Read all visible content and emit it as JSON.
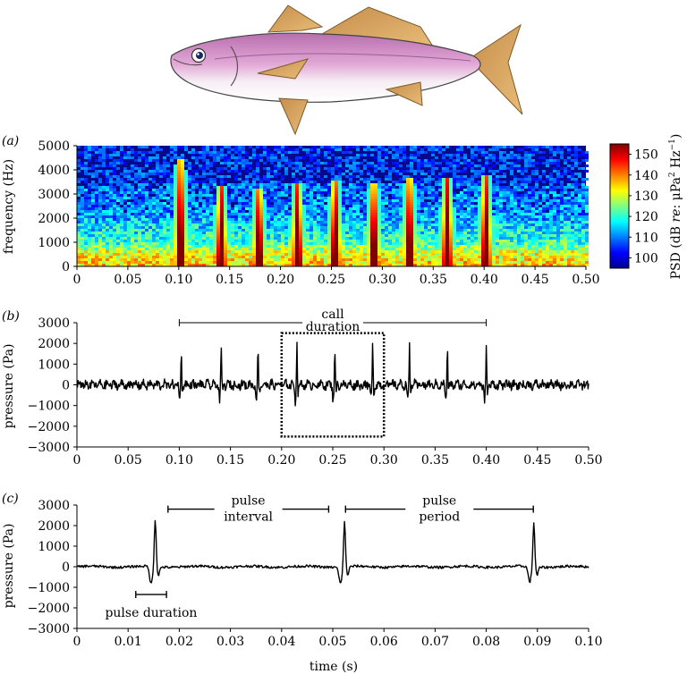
{
  "colors": {
    "spectrogram_background": "#050a8c",
    "trace": "#000000",
    "fish_body_top": "#c77bb8",
    "fish_body_belly": "#f6eef4",
    "fish_fins": "#d9a35b"
  },
  "icons": {
    "fish": "fish-illustration"
  },
  "chart_data": [
    {
      "panel_label": "(a)",
      "type": "heatmap",
      "ylabel": "frequency (Hz)",
      "xlabel": "",
      "xlim": [
        0,
        0.5
      ],
      "ylim": [
        0,
        5000
      ],
      "xticks": [
        "0",
        "0.05",
        "0.10",
        "0.15",
        "0.20",
        "0.25",
        "0.30",
        "0.35",
        "0.40",
        "0.45",
        "0.50"
      ],
      "yticks": [
        "0",
        "1000",
        "2000",
        "3000",
        "4000",
        "5000"
      ],
      "colorbar": {
        "label_parts": [
          "PSD (dB ",
          "re",
          ": μPa",
          "2",
          " Hz",
          "−1",
          ")"
        ],
        "range": [
          95,
          155
        ],
        "ticks": [
          "100",
          "110",
          "120",
          "130",
          "140",
          "150"
        ]
      },
      "pulse_times": [
        0.1,
        0.14,
        0.177,
        0.215,
        0.252,
        0.29,
        0.325,
        0.362,
        0.4
      ],
      "pulse_peak_freq_top": [
        4500,
        3400,
        3300,
        3500,
        3600,
        3500,
        3700,
        3700,
        3800
      ]
    },
    {
      "panel_label": "(b)",
      "type": "line",
      "ylabel": "pressure (Pa)",
      "xlabel": "",
      "xlim": [
        0,
        0.5
      ],
      "ylim": [
        -3000,
        3000
      ],
      "xticks": [
        "0",
        "0.05",
        "0.10",
        "0.15",
        "0.20",
        "0.25",
        "0.30",
        "0.35",
        "0.40",
        "0.45",
        "0.50"
      ],
      "yticks": [
        "3000",
        "2000",
        "1000",
        "0",
        "−1000",
        "−2000",
        "−3000"
      ],
      "pulses": [
        {
          "t": 0.102,
          "peak": 2000,
          "trough": -800
        },
        {
          "t": 0.141,
          "peak": 1800,
          "trough": -700
        },
        {
          "t": 0.177,
          "peak": 1900,
          "trough": -700
        },
        {
          "t": 0.215,
          "peak": 2200,
          "trough": -800
        },
        {
          "t": 0.252,
          "peak": 1900,
          "trough": -700
        },
        {
          "t": 0.289,
          "peak": 2200,
          "trough": -700
        },
        {
          "t": 0.325,
          "peak": 1900,
          "trough": -700
        },
        {
          "t": 0.362,
          "peak": 1900,
          "trough": -700
        },
        {
          "t": 0.4,
          "peak": 2000,
          "trough": -900
        }
      ],
      "annotation": {
        "line1": "call",
        "line2": "duration",
        "from": 0.1,
        "to": 0.4,
        "y": 3000
      },
      "zoom_box": {
        "x0": 0.2,
        "x1": 0.3,
        "y0": -2500,
        "y1": 2500
      }
    },
    {
      "panel_label": "(c)",
      "type": "line",
      "ylabel": "pressure (Pa)",
      "xlabel": "time (s)",
      "xlim": [
        0,
        0.1
      ],
      "ylim": [
        -3000,
        3000
      ],
      "xticks": [
        "0",
        "0.01",
        "0.02",
        "0.03",
        "0.04",
        "0.05",
        "0.06",
        "0.07",
        "0.08",
        "0.09",
        "0.10"
      ],
      "yticks": [
        "3000",
        "2000",
        "1000",
        "0",
        "−1000",
        "−2000",
        "−3000"
      ],
      "pulses": [
        {
          "t": 0.0153,
          "peak": 2300,
          "trough": -850
        },
        {
          "t": 0.0523,
          "peak": 2200,
          "trough": -800
        },
        {
          "t": 0.0893,
          "peak": 2200,
          "trough": -750
        }
      ],
      "annotations": {
        "interval": {
          "line1": "pulse",
          "line2": "interval",
          "from": 0.0178,
          "to": 0.0492
        },
        "period": {
          "line1": "pulse",
          "line2": "period",
          "from": 0.0525,
          "to": 0.0892
        },
        "duration": {
          "label": "pulse duration",
          "from": 0.0115,
          "to": 0.0175,
          "y": -1350
        }
      }
    }
  ]
}
